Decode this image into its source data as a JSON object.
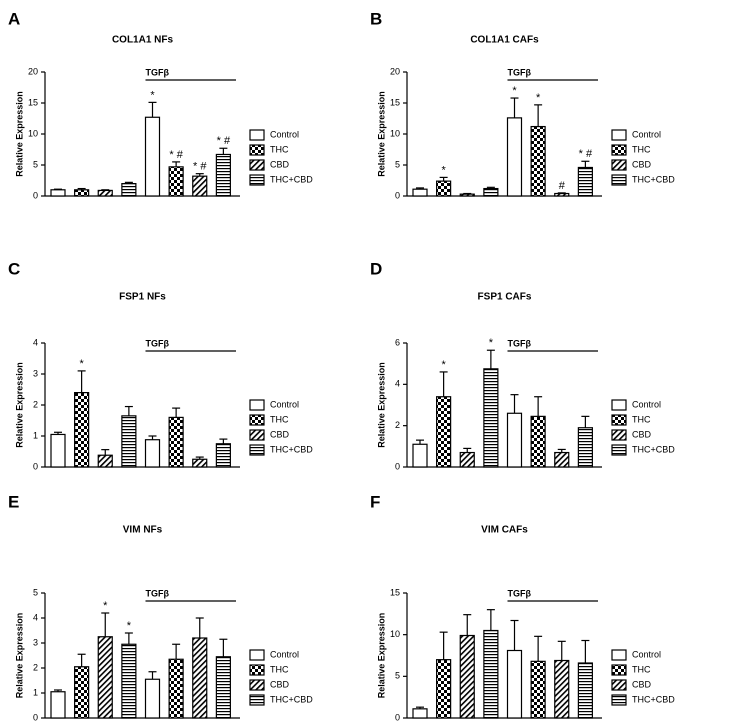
{
  "chart_data": [
    {
      "type": "bar",
      "panel": "A",
      "title": "COL1A1 NFs",
      "y_label": "Relative Expression",
      "bracket_label": "TGFβ",
      "categories": [
        null,
        null
      ],
      "ylim": [
        0,
        20
      ],
      "yticks": [
        0,
        5,
        10,
        15,
        20
      ],
      "series": [
        {
          "name": "Control",
          "pattern": "none",
          "values": [
            1.0,
            12.7
          ],
          "errors": [
            0.1,
            2.4
          ],
          "markers": [
            null,
            "*"
          ]
        },
        {
          "name": "THC",
          "pattern": "checker",
          "values": [
            1.0,
            4.7
          ],
          "errors": [
            0.2,
            0.8
          ],
          "markers": [
            null,
            "* #"
          ]
        },
        {
          "name": "CBD",
          "pattern": "diagonal",
          "values": [
            0.9,
            3.2
          ],
          "errors": [
            0.1,
            0.4
          ],
          "markers": [
            null,
            "* #"
          ]
        },
        {
          "name": "THC+CBD",
          "pattern": "horizontal",
          "values": [
            2.0,
            6.7
          ],
          "errors": [
            0.2,
            1.0
          ],
          "markers": [
            null,
            "* #"
          ]
        }
      ]
    },
    {
      "type": "bar",
      "panel": "B",
      "title": "COL1A1 CAFs",
      "y_label": "Relative Expression",
      "bracket_label": "TGFβ",
      "categories": [
        null,
        null
      ],
      "ylim": [
        0,
        20
      ],
      "yticks": [
        0,
        5,
        10,
        15,
        20
      ],
      "series": [
        {
          "name": "Control",
          "pattern": "none",
          "values": [
            1.1,
            12.6
          ],
          "errors": [
            0.2,
            3.2
          ],
          "markers": [
            null,
            "*"
          ]
        },
        {
          "name": "THC",
          "pattern": "checker",
          "values": [
            2.4,
            11.2
          ],
          "errors": [
            0.6,
            3.5
          ],
          "markers": [
            "*",
            "*"
          ]
        },
        {
          "name": "CBD",
          "pattern": "diagonal",
          "values": [
            0.3,
            0.4
          ],
          "errors": [
            0.1,
            0.1
          ],
          "markers": [
            null,
            "#"
          ]
        },
        {
          "name": "THC+CBD",
          "pattern": "horizontal",
          "values": [
            1.2,
            4.6
          ],
          "errors": [
            0.2,
            1.0
          ],
          "markers": [
            null,
            "* #"
          ]
        }
      ]
    },
    {
      "type": "bar",
      "panel": "C",
      "title": "FSP1 NFs",
      "y_label": "Relative Expression",
      "bracket_label": "TGFβ",
      "categories": [
        null,
        null
      ],
      "ylim": [
        0,
        4
      ],
      "yticks": [
        0,
        1,
        2,
        3,
        4
      ],
      "series": [
        {
          "name": "Control",
          "pattern": "none",
          "values": [
            1.05,
            0.88
          ],
          "errors": [
            0.07,
            0.12
          ],
          "markers": [
            null,
            null
          ]
        },
        {
          "name": "THC",
          "pattern": "checker",
          "values": [
            2.4,
            1.6
          ],
          "errors": [
            0.7,
            0.3
          ],
          "markers": [
            "*",
            null
          ]
        },
        {
          "name": "CBD",
          "pattern": "diagonal",
          "values": [
            0.38,
            0.25
          ],
          "errors": [
            0.18,
            0.07
          ],
          "markers": [
            null,
            null
          ]
        },
        {
          "name": "THC+CBD",
          "pattern": "horizontal",
          "values": [
            1.65,
            0.75
          ],
          "errors": [
            0.3,
            0.15
          ],
          "markers": [
            null,
            null
          ]
        }
      ]
    },
    {
      "type": "bar",
      "panel": "D",
      "title": "FSP1 CAFs",
      "y_label": "Relative Expression",
      "bracket_label": "TGFβ",
      "categories": [
        null,
        null
      ],
      "ylim": [
        0,
        6
      ],
      "yticks": [
        0,
        2,
        4,
        6
      ],
      "series": [
        {
          "name": "Control",
          "pattern": "none",
          "values": [
            1.1,
            2.6
          ],
          "errors": [
            0.2,
            0.9
          ],
          "markers": [
            null,
            null
          ]
        },
        {
          "name": "THC",
          "pattern": "checker",
          "values": [
            3.4,
            2.45
          ],
          "errors": [
            1.2,
            0.95
          ],
          "markers": [
            "*",
            null
          ]
        },
        {
          "name": "CBD",
          "pattern": "diagonal",
          "values": [
            0.7,
            0.7
          ],
          "errors": [
            0.2,
            0.15
          ],
          "markers": [
            null,
            null
          ]
        },
        {
          "name": "THC+CBD",
          "pattern": "horizontal",
          "values": [
            4.75,
            1.9
          ],
          "errors": [
            0.9,
            0.55
          ],
          "markers": [
            "*",
            null
          ]
        }
      ]
    },
    {
      "type": "bar",
      "panel": "E",
      "title": "VIM NFs",
      "y_label": "Relative Expression",
      "bracket_label": "TGFβ",
      "categories": [
        null,
        null
      ],
      "ylim": [
        0,
        5
      ],
      "yticks": [
        0,
        1,
        2,
        3,
        4,
        5
      ],
      "series": [
        {
          "name": "Control",
          "pattern": "none",
          "values": [
            1.05,
            1.55
          ],
          "errors": [
            0.07,
            0.3
          ],
          "markers": [
            null,
            null
          ]
        },
        {
          "name": "THC",
          "pattern": "checker",
          "values": [
            2.05,
            2.35
          ],
          "errors": [
            0.5,
            0.6
          ],
          "markers": [
            null,
            null
          ]
        },
        {
          "name": "CBD",
          "pattern": "diagonal",
          "values": [
            3.25,
            3.2
          ],
          "errors": [
            0.95,
            0.8
          ],
          "markers": [
            "*",
            null
          ]
        },
        {
          "name": "THC+CBD",
          "pattern": "horizontal",
          "values": [
            2.95,
            2.45
          ],
          "errors": [
            0.45,
            0.7
          ],
          "markers": [
            "*",
            null
          ]
        }
      ]
    },
    {
      "type": "bar",
      "panel": "F",
      "title": "VIM CAFs",
      "y_label": "Relative Expression",
      "bracket_label": "TGFβ",
      "categories": [
        null,
        null
      ],
      "ylim": [
        0,
        15
      ],
      "yticks": [
        0,
        5,
        10,
        15
      ],
      "series": [
        {
          "name": "Control",
          "pattern": "none",
          "values": [
            1.1,
            8.1
          ],
          "errors": [
            0.2,
            3.6
          ],
          "markers": [
            null,
            null
          ]
        },
        {
          "name": "THC",
          "pattern": "checker",
          "values": [
            7.0,
            6.8
          ],
          "errors": [
            3.3,
            3.0
          ],
          "markers": [
            null,
            null
          ]
        },
        {
          "name": "CBD",
          "pattern": "diagonal",
          "values": [
            9.9,
            6.9
          ],
          "errors": [
            2.5,
            2.3
          ],
          "markers": [
            null,
            null
          ]
        },
        {
          "name": "THC+CBD",
          "pattern": "horizontal",
          "values": [
            10.5,
            6.6
          ],
          "errors": [
            2.5,
            2.7
          ],
          "markers": [
            null,
            null
          ]
        }
      ]
    }
  ]
}
